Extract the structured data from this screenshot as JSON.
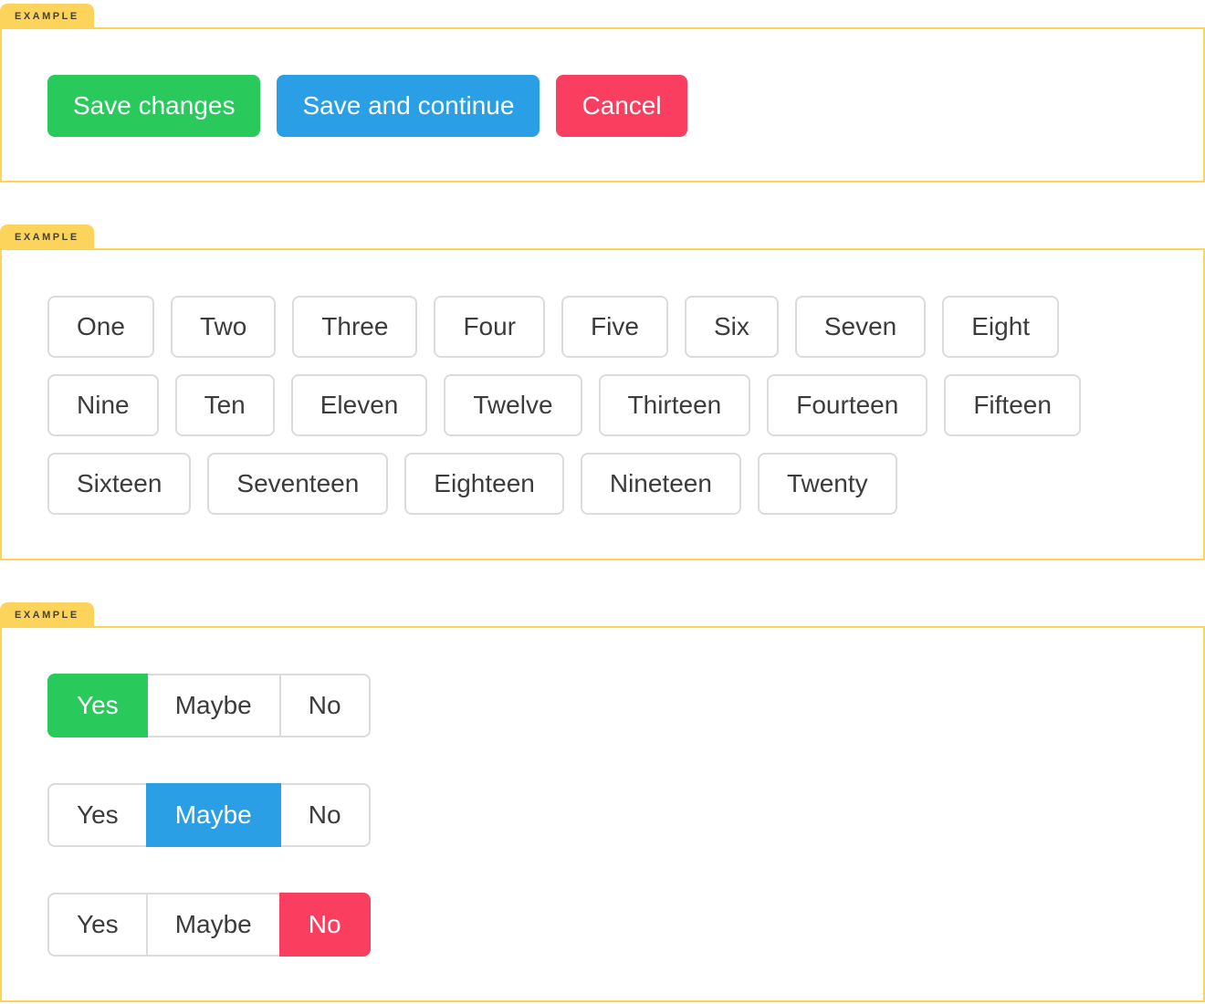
{
  "labels": {
    "example_tag": "EXAMPLE"
  },
  "colors": {
    "accent_yellow": "#fcd45c",
    "success_green": "#29c95c",
    "info_blue": "#2a9fe5",
    "danger_red": "#fa3e60",
    "button_border_gray": "#dbdbdb",
    "button_text_dark": "#3c3c3c",
    "selected_text_white": "#ffffff",
    "tag_text": "#474130"
  },
  "action_buttons": {
    "save_changes": "Save changes",
    "save_and_continue": "Save and continue",
    "cancel": "Cancel"
  },
  "number_buttons": {
    "rows": [
      [
        "One",
        "Two",
        "Three",
        "Four",
        "Five",
        "Six",
        "Seven",
        "Eight"
      ],
      [
        "Nine",
        "Ten",
        "Eleven",
        "Twelve",
        "Thirteen",
        "Fourteen",
        "Fifteen"
      ],
      [
        "Sixteen",
        "Seventeen",
        "Eighteen",
        "Nineteen",
        "Twenty"
      ]
    ]
  },
  "button_groups": [
    {
      "options": [
        "Yes",
        "Maybe",
        "No"
      ],
      "selected": "Yes",
      "selected_color": "#29c95c"
    },
    {
      "options": [
        "Yes",
        "Maybe",
        "No"
      ],
      "selected": "Maybe",
      "selected_color": "#2a9fe5"
    },
    {
      "options": [
        "Yes",
        "Maybe",
        "No"
      ],
      "selected": "No",
      "selected_color": "#fa3e60"
    }
  ]
}
